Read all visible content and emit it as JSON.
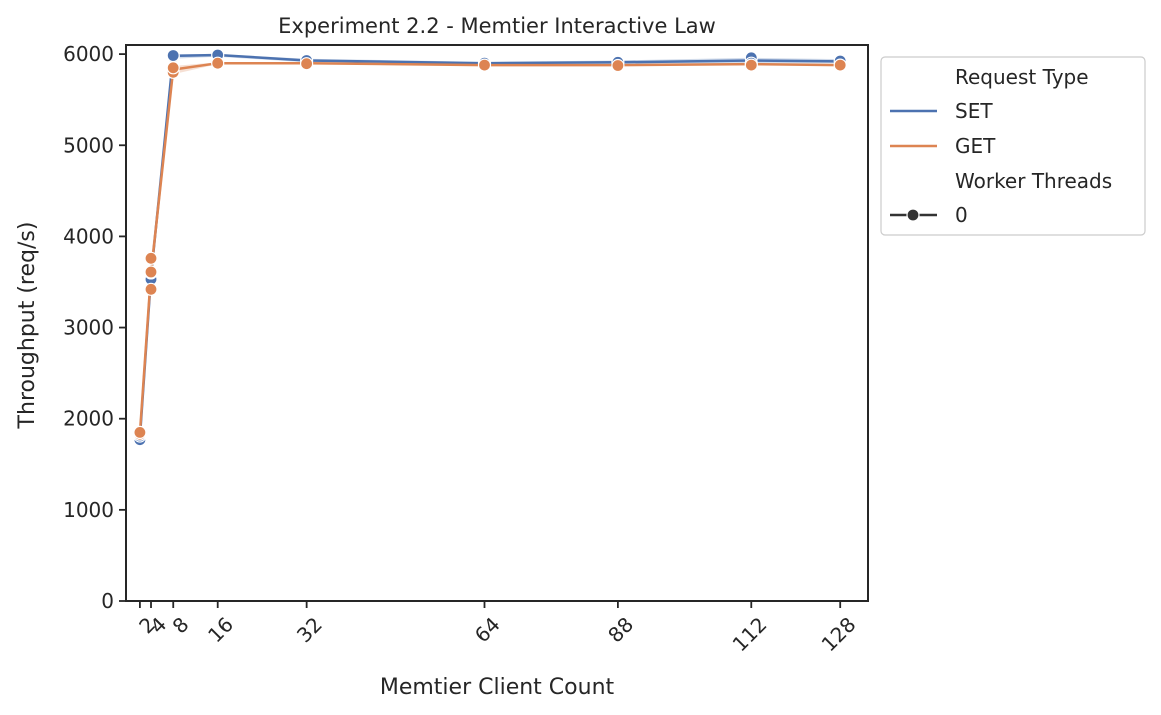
{
  "chart_data": {
    "type": "line",
    "title": "Experiment 2.2 - Memtier Interactive Law",
    "xlabel": "Memtier Client Count",
    "ylabel": "Throughput (req/s)",
    "x": [
      2,
      4,
      8,
      16,
      32,
      64,
      88,
      112,
      128
    ],
    "x_tick_labels": [
      "2",
      "4",
      "8",
      "16",
      "32",
      "64",
      "88",
      "112",
      "128"
    ],
    "xlim": [
      -0.5,
      133
    ],
    "ylim": [
      0,
      6100
    ],
    "y_ticks": [
      0,
      1000,
      2000,
      3000,
      4000,
      5000,
      6000
    ],
    "grid": false,
    "legend_position": "outside-top-right",
    "legend": {
      "hue_title": "Request Type",
      "style_title": "Worker Threads",
      "style_entry": "0"
    },
    "series": [
      {
        "name": "SET",
        "color": "#4c72b0",
        "values": [
          1790,
          3560,
          5980,
          5990,
          5930,
          5900,
          5910,
          5930,
          5920
        ],
        "ci_low": [
          1770,
          3500,
          5950,
          5970,
          5910,
          5890,
          5890,
          5900,
          5900
        ],
        "ci_high": [
          1810,
          3620,
          6000,
          6000,
          5950,
          5915,
          5930,
          5960,
          5945
        ],
        "points": [
          [
            2,
            1770
          ],
          [
            2,
            1810
          ],
          [
            4,
            3530
          ],
          [
            4,
            3600
          ],
          [
            8,
            5970
          ],
          [
            8,
            5985
          ],
          [
            16,
            5990
          ],
          [
            32,
            5930
          ],
          [
            64,
            5900
          ],
          [
            88,
            5910
          ],
          [
            112,
            5960
          ],
          [
            112,
            5900
          ],
          [
            128,
            5925
          ]
        ]
      },
      {
        "name": "GET",
        "color": "#dd8452",
        "values": [
          1840,
          3600,
          5830,
          5900,
          5900,
          5880,
          5880,
          5890,
          5880
        ],
        "ci_low": [
          1820,
          3440,
          5780,
          5890,
          5890,
          5870,
          5870,
          5880,
          5870
        ],
        "ci_high": [
          1860,
          3760,
          5870,
          5910,
          5910,
          5890,
          5890,
          5900,
          5890
        ],
        "points": [
          [
            2,
            1830
          ],
          [
            2,
            1850
          ],
          [
            4,
            3420
          ],
          [
            4,
            3610
          ],
          [
            4,
            3760
          ],
          [
            8,
            5800
          ],
          [
            8,
            5850
          ],
          [
            16,
            5900
          ],
          [
            32,
            5895
          ],
          [
            64,
            5880
          ],
          [
            88,
            5875
          ],
          [
            112,
            5880
          ],
          [
            128,
            5880
          ]
        ]
      }
    ]
  }
}
